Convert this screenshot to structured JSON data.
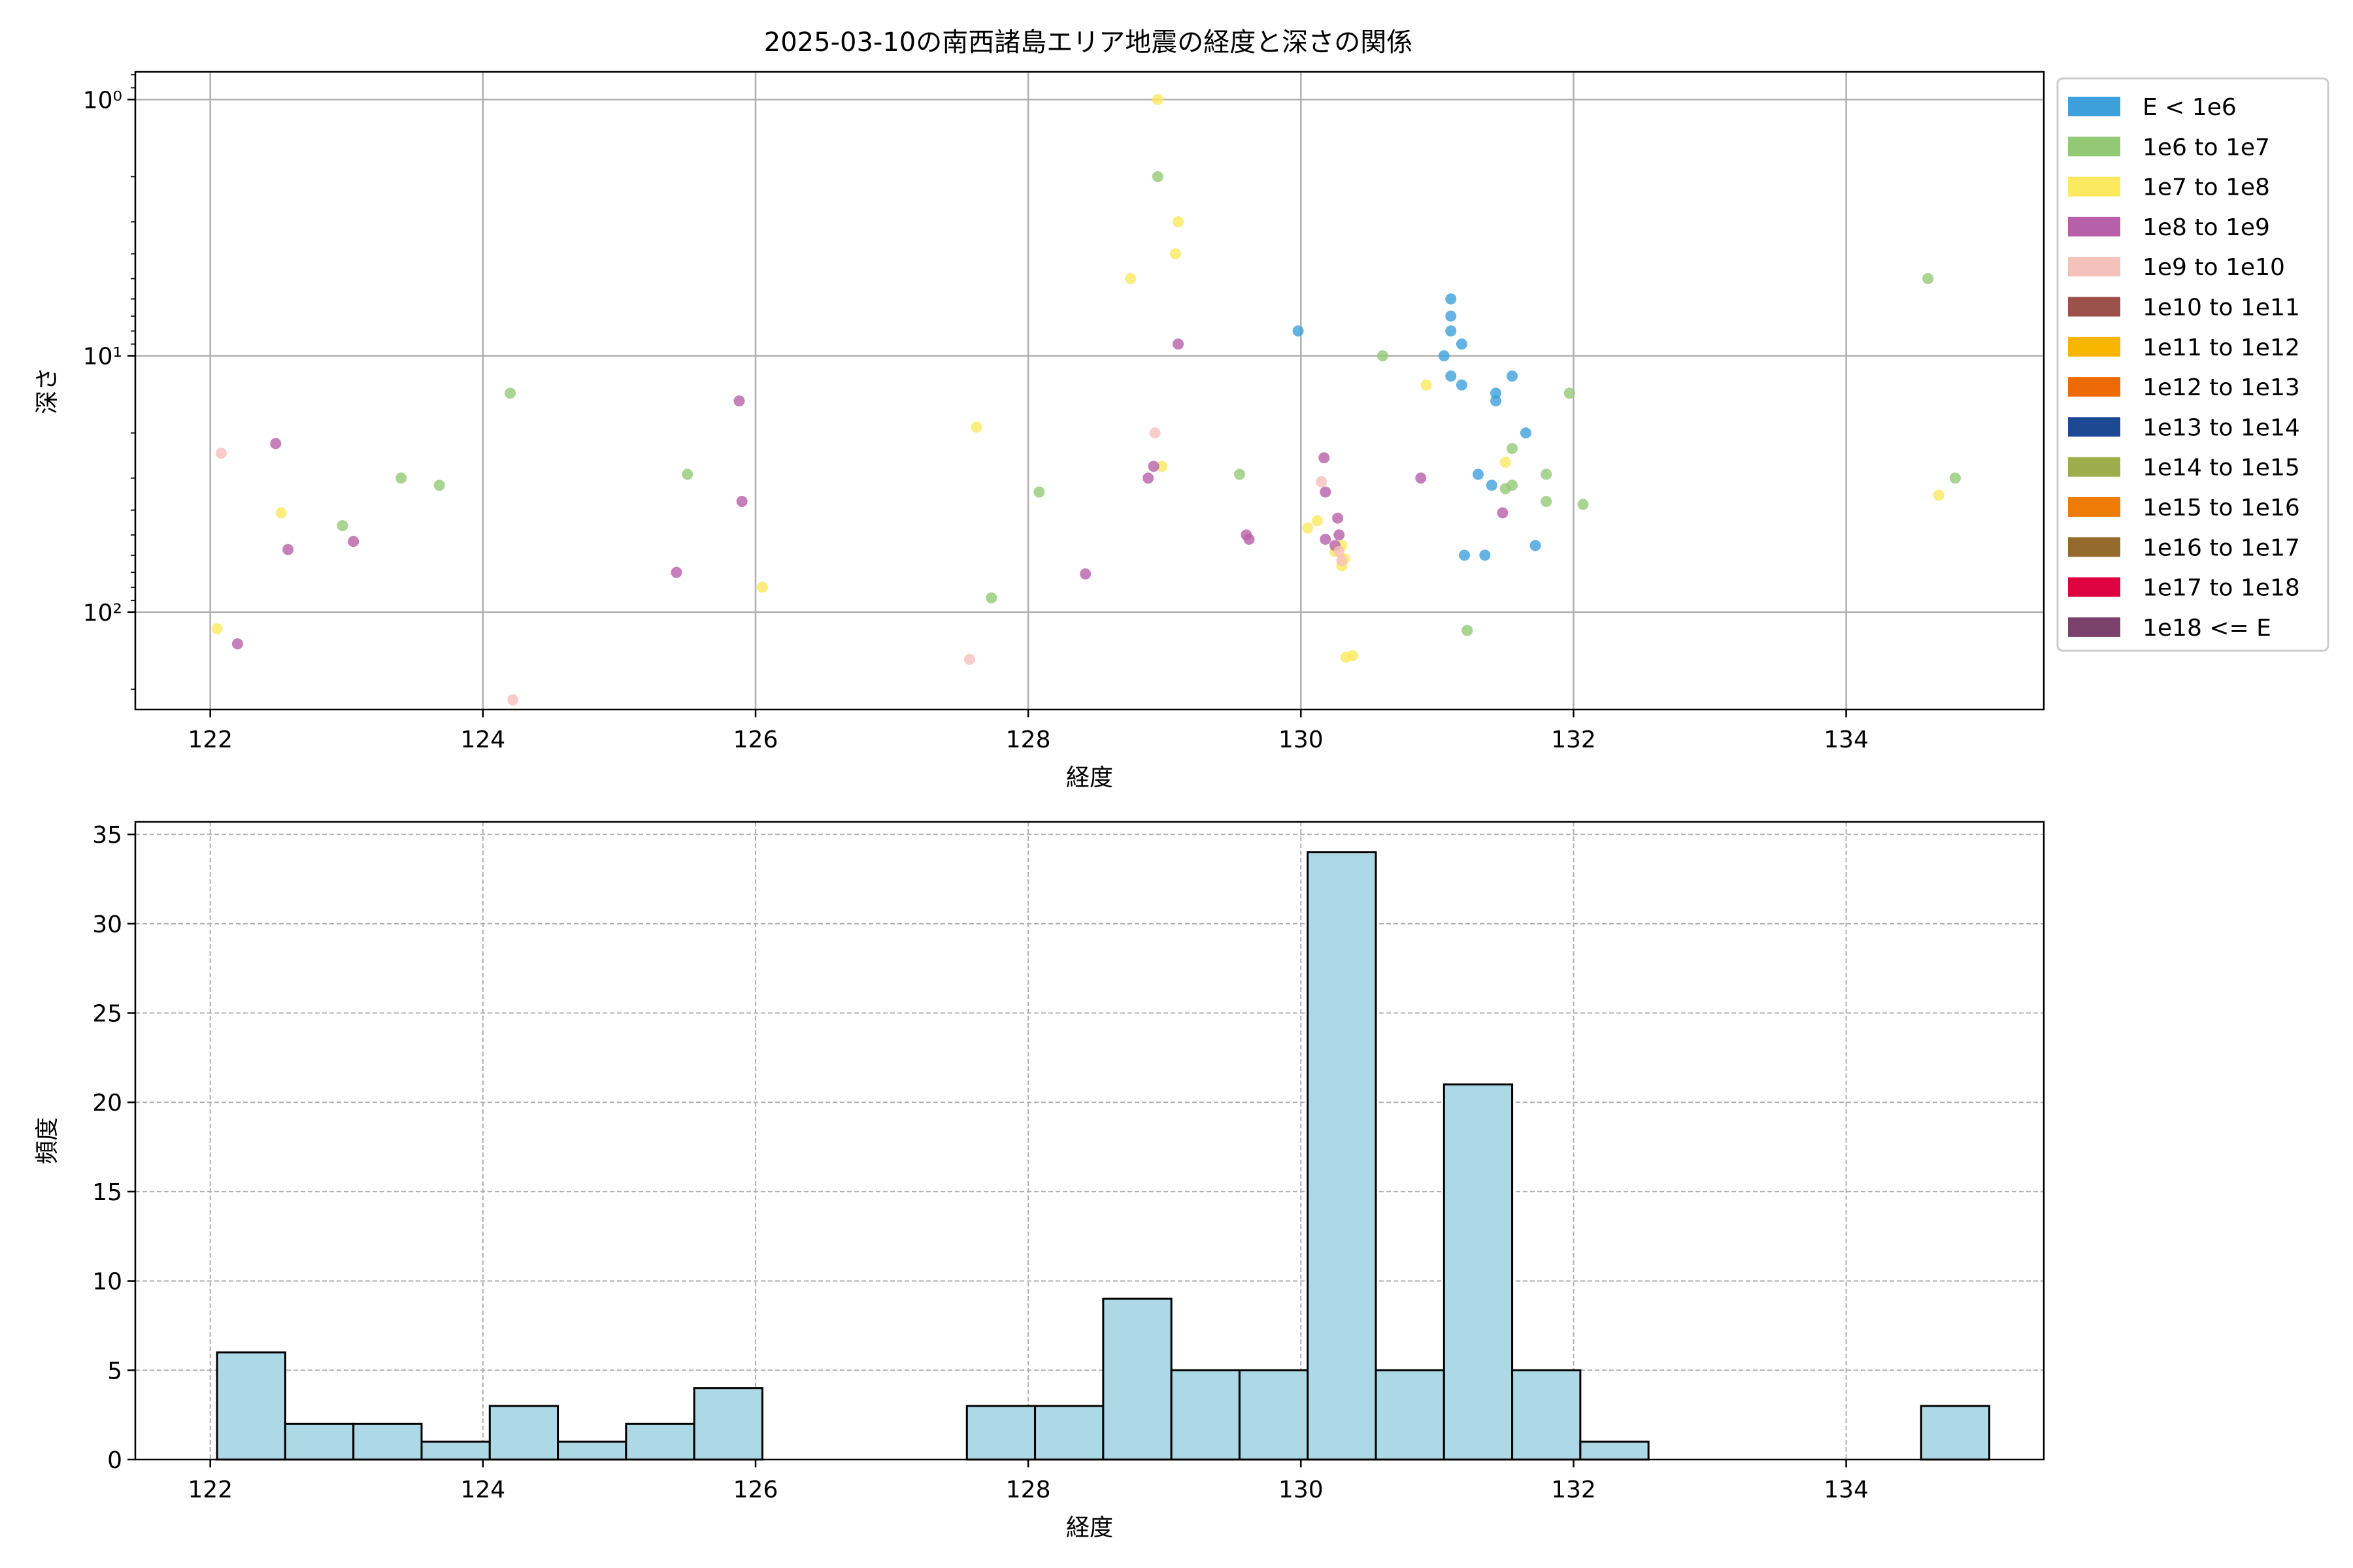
{
  "chart_data": [
    {
      "type": "scatter",
      "title": "2025-03-10の南西諸島エリア地震の経度と深さの関係",
      "xlabel": "経度",
      "ylabel": "深さ",
      "xlim": [
        121.45,
        135.45
      ],
      "ylim": [
        0.78,
        240
      ],
      "y_scale": "log",
      "y_inverted": true,
      "y_ticks": [
        1,
        10,
        100
      ],
      "y_tick_labels": [
        "10⁰",
        "10¹",
        "10²"
      ],
      "x_ticks": [
        122,
        124,
        126,
        128,
        130,
        132,
        134
      ],
      "x_tick_labels": [
        "122",
        "124",
        "126",
        "128",
        "130",
        "132",
        "134"
      ],
      "grid": true,
      "legend_placement": "outside-right",
      "legend": [
        {
          "label": "E < 1e6",
          "color": "#3da0db"
        },
        {
          "label": "1e6 to 1e7",
          "color": "#93c975"
        },
        {
          "label": "1e7 to 1e8",
          "color": "#fbe95f"
        },
        {
          "label": "1e8 to 1e9",
          "color": "#b760a9"
        },
        {
          "label": "1e9 to 1e10",
          "color": "#f5c1bb"
        },
        {
          "label": "1e10 to 1e11",
          "color": "#9b5049"
        },
        {
          "label": "1e11 to 1e12",
          "color": "#f8b500"
        },
        {
          "label": "1e12 to 1e13",
          "color": "#ee6a06"
        },
        {
          "label": "1e13 to 1e14",
          "color": "#1d4992"
        },
        {
          "label": "1e14 to 1e15",
          "color": "#9ead4b"
        },
        {
          "label": "1e15 to 1e16",
          "color": "#ee7b06"
        },
        {
          "label": "1e16 to 1e17",
          "color": "#946b2c"
        },
        {
          "label": "1e17 to 1e18",
          "color": "#dc0340"
        },
        {
          "label": "1e18 <= E",
          "color": "#7a416c"
        }
      ],
      "series": [
        {
          "color": "#3da0db",
          "points": [
            [
              129.98,
              8
            ],
            [
              131.1,
              6
            ],
            [
              131.1,
              7
            ],
            [
              131.1,
              8
            ],
            [
              131.18,
              9
            ],
            [
              131.05,
              10
            ],
            [
              131.1,
              12
            ],
            [
              131.18,
              13
            ],
            [
              131.43,
              14
            ],
            [
              131.43,
              15
            ],
            [
              131.55,
              12
            ],
            [
              131.65,
              20
            ],
            [
              131.3,
              29
            ],
            [
              131.4,
              32
            ],
            [
              131.2,
              60
            ],
            [
              131.35,
              60
            ],
            [
              131.72,
              55
            ]
          ]
        },
        {
          "color": "#93c975",
          "points": [
            [
              128.95,
              2
            ],
            [
              134.6,
              5
            ],
            [
              130.6,
              10
            ],
            [
              124.2,
              14
            ],
            [
              131.97,
              14
            ],
            [
              131.55,
              23
            ],
            [
              131.8,
              29
            ],
            [
              131.5,
              33
            ],
            [
              131.55,
              32
            ],
            [
              131.8,
              37
            ],
            [
              132.07,
              38
            ],
            [
              129.55,
              29
            ],
            [
              125.5,
              29
            ],
            [
              123.4,
              30
            ],
            [
              123.68,
              32
            ],
            [
              122.97,
              46
            ],
            [
              128.08,
              34
            ],
            [
              127.73,
              88
            ],
            [
              131.22,
              118
            ],
            [
              134.8,
              30
            ]
          ]
        },
        {
          "color": "#fbe95f",
          "points": [
            [
              128.95,
              1
            ],
            [
              129.1,
              3
            ],
            [
              129.08,
              4
            ],
            [
              128.75,
              5
            ],
            [
              130.92,
              13
            ],
            [
              127.62,
              19
            ],
            [
              128.98,
              27
            ],
            [
              131.5,
              26
            ],
            [
              134.68,
              35
            ],
            [
              122.52,
              41
            ],
            [
              130.05,
              47
            ],
            [
              130.12,
              44
            ],
            [
              130.3,
              55
            ],
            [
              130.25,
              58
            ],
            [
              130.32,
              62
            ],
            [
              130.3,
              66
            ],
            [
              126.05,
              80
            ],
            [
              122.05,
              116
            ],
            [
              130.38,
              148
            ],
            [
              130.33,
              150
            ]
          ]
        },
        {
          "color": "#b760a9",
          "points": [
            [
              129.1,
              9
            ],
            [
              125.88,
              15
            ],
            [
              122.48,
              22
            ],
            [
              128.92,
              27
            ],
            [
              128.88,
              30
            ],
            [
              130.17,
              25
            ],
            [
              130.18,
              34
            ],
            [
              130.88,
              30
            ],
            [
              130.27,
              43
            ],
            [
              131.48,
              41
            ],
            [
              125.9,
              37
            ],
            [
              129.6,
              50
            ],
            [
              129.62,
              52
            ],
            [
              130.28,
              50
            ],
            [
              130.18,
              52
            ],
            [
              130.25,
              55
            ],
            [
              123.05,
              53
            ],
            [
              122.57,
              57
            ],
            [
              125.42,
              70
            ],
            [
              128.42,
              71
            ],
            [
              122.2,
              133
            ]
          ]
        },
        {
          "color": "#f5c1bb",
          "points": [
            [
              122.08,
              24
            ],
            [
              128.93,
              20
            ],
            [
              130.15,
              31
            ],
            [
              130.28,
              58
            ],
            [
              130.3,
              63
            ],
            [
              127.57,
              153
            ],
            [
              124.22,
              220
            ]
          ]
        }
      ]
    },
    {
      "type": "bar",
      "title": "",
      "xlabel": "経度",
      "ylabel": "頻度",
      "xlim": [
        121.45,
        135.45
      ],
      "ylim": [
        0,
        35.7
      ],
      "x_ticks": [
        122,
        124,
        126,
        128,
        130,
        132,
        134
      ],
      "x_tick_labels": [
        "122",
        "124",
        "126",
        "128",
        "130",
        "132",
        "134"
      ],
      "y_ticks": [
        0,
        5,
        10,
        15,
        20,
        25,
        30,
        35
      ],
      "y_tick_labels": [
        "0",
        "5",
        "10",
        "15",
        "20",
        "25",
        "30",
        "35"
      ],
      "grid": true,
      "bar_color": "#add8e6",
      "bins": [
        [
          122.05,
          122.55,
          6
        ],
        [
          122.55,
          123.05,
          2
        ],
        [
          123.05,
          123.55,
          2
        ],
        [
          123.55,
          124.05,
          1
        ],
        [
          124.05,
          124.55,
          3
        ],
        [
          124.55,
          125.05,
          1
        ],
        [
          125.05,
          125.55,
          2
        ],
        [
          125.55,
          126.05,
          4
        ],
        [
          127.55,
          128.05,
          3
        ],
        [
          128.05,
          128.55,
          3
        ],
        [
          128.55,
          129.05,
          9
        ],
        [
          129.05,
          129.55,
          5
        ],
        [
          129.55,
          130.05,
          5
        ],
        [
          130.05,
          130.55,
          34
        ],
        [
          130.55,
          131.05,
          5
        ],
        [
          131.05,
          131.55,
          21
        ],
        [
          131.55,
          132.05,
          5
        ],
        [
          132.05,
          132.55,
          1
        ],
        [
          134.55,
          135.05,
          3
        ]
      ]
    }
  ]
}
